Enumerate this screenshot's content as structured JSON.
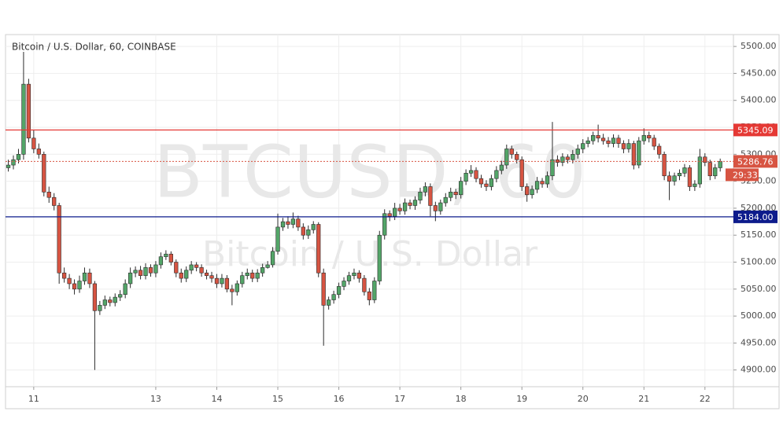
{
  "chart_data": {
    "type": "candlestick",
    "title": "Bitcoin / U.S. Dollar, 60, COINBASE",
    "watermark_symbol": "BTCUSD, 60",
    "watermark_name": "Bitcoin / U.S. Dollar",
    "up_color": "#53a568",
    "down_color": "#d75442",
    "wick_color": "#2b2b2b",
    "grid": true,
    "xlim": [
      -11.1,
      275.2
    ],
    "xticks": [
      {
        "value": 0,
        "label": "11"
      },
      {
        "value": 48,
        "label": "13"
      },
      {
        "value": 72,
        "label": "14"
      },
      {
        "value": 96,
        "label": "15"
      },
      {
        "value": 120,
        "label": "16"
      },
      {
        "value": 144,
        "label": "17"
      },
      {
        "value": 168,
        "label": "18"
      },
      {
        "value": 192,
        "label": "19"
      },
      {
        "value": 216,
        "label": "20"
      },
      {
        "value": 240,
        "label": "21"
      },
      {
        "value": 264,
        "label": "22"
      }
    ],
    "ylim": [
      4869,
      5522
    ],
    "yticks": [
      {
        "value": 4900,
        "label": "4900.00"
      },
      {
        "value": 4950,
        "label": "4950.00"
      },
      {
        "value": 5000,
        "label": "5000.00"
      },
      {
        "value": 5050,
        "label": "5050.00"
      },
      {
        "value": 5100,
        "label": "5100.00"
      },
      {
        "value": 5150,
        "label": "5150.00"
      },
      {
        "value": 5200,
        "label": "5200.00"
      },
      {
        "value": 5250,
        "label": "5250.00"
      },
      {
        "value": 5300,
        "label": "5300.00"
      },
      {
        "value": 5350,
        "label": "5350.00"
      },
      {
        "value": 5400,
        "label": "5400.00"
      },
      {
        "value": 5450,
        "label": "5450.00"
      },
      {
        "value": 5500,
        "label": "5500.00"
      }
    ],
    "levels": [
      {
        "value": 5345.09,
        "label": "5345.09",
        "color": "#e53935",
        "style": "solid"
      },
      {
        "value": 5286.76,
        "label": "5286.76",
        "color": "#d75442",
        "style": "dotted",
        "countdown": "29:33"
      },
      {
        "value": 5184,
        "label": "5184.00",
        "color": "#0d1b8c",
        "style": "solid"
      }
    ],
    "x": [
      -10,
      -8,
      -6,
      -4,
      -2,
      0,
      2,
      4,
      6,
      8,
      10,
      12,
      14,
      16,
      18,
      20,
      22,
      24,
      26,
      28,
      30,
      32,
      34,
      36,
      38,
      40,
      42,
      44,
      46,
      48,
      50,
      52,
      54,
      56,
      58,
      60,
      62,
      64,
      66,
      68,
      70,
      72,
      74,
      76,
      78,
      80,
      82,
      84,
      86,
      88,
      90,
      92,
      94,
      96,
      98,
      100,
      102,
      104,
      106,
      108,
      110,
      112,
      114,
      116,
      118,
      120,
      122,
      124,
      126,
      128,
      130,
      132,
      134,
      136,
      138,
      140,
      142,
      144,
      146,
      148,
      150,
      152,
      154,
      156,
      158,
      160,
      162,
      164,
      166,
      168,
      170,
      172,
      174,
      176,
      178,
      180,
      182,
      184,
      186,
      188,
      190,
      192,
      194,
      196,
      198,
      200,
      202,
      204,
      206,
      208,
      210,
      212,
      214,
      216,
      218,
      220,
      222,
      224,
      226,
      228,
      230,
      232,
      234,
      236,
      238,
      240,
      242,
      244,
      246,
      248,
      250,
      252,
      254,
      256,
      258,
      260,
      262,
      264,
      266,
      268,
      270
    ],
    "open": [
      5275,
      5280,
      5290,
      5300,
      5430,
      5330,
      5310,
      5300,
      5230,
      5220,
      5205,
      5080,
      5070,
      5060,
      5050,
      5065,
      5080,
      5060,
      5010,
      5020,
      5030,
      5025,
      5035,
      5040,
      5060,
      5080,
      5085,
      5075,
      5090,
      5080,
      5095,
      5110,
      5115,
      5100,
      5080,
      5070,
      5085,
      5095,
      5090,
      5080,
      5075,
      5070,
      5060,
      5070,
      5050,
      5045,
      5060,
      5075,
      5080,
      5070,
      5080,
      5090,
      5095,
      5120,
      5165,
      5175,
      5170,
      5180,
      5165,
      5150,
      5160,
      5170,
      5080,
      5020,
      5030,
      5040,
      5055,
      5065,
      5075,
      5080,
      5070,
      5045,
      5030,
      5065,
      5150,
      5190,
      5185,
      5200,
      5195,
      5210,
      5205,
      5215,
      5230,
      5240,
      5205,
      5195,
      5210,
      5220,
      5230,
      5225,
      5250,
      5265,
      5270,
      5255,
      5245,
      5240,
      5255,
      5270,
      5280,
      5310,
      5300,
      5290,
      5240,
      5225,
      5235,
      5250,
      5245,
      5260,
      5290,
      5285,
      5295,
      5290,
      5300,
      5310,
      5320,
      5325,
      5335,
      5330,
      5325,
      5320,
      5330,
      5320,
      5310,
      5320,
      5280,
      5325,
      5335,
      5330,
      5315,
      5300,
      5260,
      5250,
      5260,
      5265,
      5275,
      5240,
      5245,
      5295,
      5285,
      5260,
      5275
    ],
    "high": [
      5290,
      5298,
      5310,
      5490,
      5440,
      5345,
      5320,
      5305,
      5240,
      5228,
      5210,
      5090,
      5078,
      5068,
      5075,
      5090,
      5088,
      5065,
      5028,
      5038,
      5036,
      5042,
      5048,
      5068,
      5090,
      5092,
      5093,
      5098,
      5096,
      5102,
      5118,
      5122,
      5120,
      5105,
      5088,
      5092,
      5102,
      5100,
      5096,
      5086,
      5082,
      5078,
      5078,
      5076,
      5058,
      5066,
      5082,
      5088,
      5086,
      5087,
      5097,
      5102,
      5128,
      5190,
      5182,
      5185,
      5192,
      5186,
      5172,
      5168,
      5176,
      5174,
      5088,
      5036,
      5047,
      5062,
      5072,
      5082,
      5088,
      5085,
      5076,
      5052,
      5072,
      5158,
      5198,
      5196,
      5210,
      5208,
      5218,
      5216,
      5222,
      5238,
      5248,
      5246,
      5212,
      5216,
      5228,
      5238,
      5236,
      5258,
      5272,
      5280,
      5276,
      5262,
      5252,
      5262,
      5278,
      5288,
      5318,
      5316,
      5305,
      5296,
      5246,
      5242,
      5258,
      5256,
      5268,
      5360,
      5298,
      5302,
      5300,
      5308,
      5318,
      5328,
      5332,
      5342,
      5355,
      5338,
      5332,
      5337,
      5336,
      5326,
      5328,
      5325,
      5332,
      5348,
      5342,
      5336,
      5320,
      5305,
      5268,
      5266,
      5272,
      5282,
      5280,
      5252,
      5310,
      5302,
      5290,
      5282,
      5292
    ],
    "low": [
      5268,
      5272,
      5283,
      5290,
      5322,
      5302,
      5292,
      5222,
      5210,
      5196,
      5060,
      5062,
      5050,
      5040,
      5043,
      5058,
      5052,
      4900,
      5002,
      5013,
      5018,
      5018,
      5028,
      5033,
      5052,
      5072,
      5068,
      5068,
      5073,
      5072,
      5088,
      5104,
      5094,
      5072,
      5062,
      5063,
      5078,
      5083,
      5073,
      5068,
      5062,
      5052,
      5053,
      5044,
      5020,
      5038,
      5053,
      5068,
      5063,
      5063,
      5073,
      5088,
      5090,
      5114,
      5158,
      5162,
      5163,
      5158,
      5142,
      5143,
      5153,
      5072,
      4945,
      5012,
      5023,
      5033,
      5048,
      5058,
      5068,
      5062,
      5038,
      5020,
      5024,
      5058,
      5142,
      5176,
      5178,
      5188,
      5188,
      5198,
      5197,
      5208,
      5222,
      5185,
      5176,
      5188,
      5203,
      5213,
      5217,
      5218,
      5243,
      5258,
      5248,
      5238,
      5232,
      5233,
      5248,
      5263,
      5273,
      5292,
      5283,
      5232,
      5212,
      5218,
      5228,
      5238,
      5238,
      5252,
      5277,
      5278,
      5283,
      5283,
      5292,
      5302,
      5313,
      5318,
      5322,
      5318,
      5313,
      5313,
      5312,
      5302,
      5303,
      5272,
      5274,
      5318,
      5322,
      5308,
      5292,
      5252,
      5215,
      5242,
      5252,
      5258,
      5232,
      5232,
      5238,
      5278,
      5252,
      5254,
      5268
    ],
    "close": [
      5280,
      5290,
      5300,
      5430,
      5330,
      5310,
      5300,
      5230,
      5220,
      5205,
      5080,
      5070,
      5060,
      5050,
      5065,
      5080,
      5060,
      5010,
      5020,
      5030,
      5025,
      5035,
      5040,
      5060,
      5080,
      5085,
      5075,
      5090,
      5080,
      5095,
      5110,
      5115,
      5100,
      5080,
      5070,
      5085,
      5095,
      5090,
      5080,
      5075,
      5070,
      5060,
      5070,
      5050,
      5045,
      5060,
      5075,
      5080,
      5070,
      5080,
      5090,
      5095,
      5120,
      5165,
      5175,
      5170,
      5180,
      5165,
      5150,
      5160,
      5170,
      5080,
      5020,
      5030,
      5040,
      5055,
      5065,
      5075,
      5080,
      5070,
      5045,
      5030,
      5065,
      5150,
      5190,
      5185,
      5200,
      5195,
      5210,
      5205,
      5215,
      5230,
      5240,
      5205,
      5195,
      5210,
      5220,
      5230,
      5225,
      5250,
      5265,
      5270,
      5255,
      5245,
      5240,
      5255,
      5270,
      5280,
      5310,
      5300,
      5290,
      5240,
      5225,
      5235,
      5250,
      5245,
      5260,
      5290,
      5285,
      5295,
      5290,
      5300,
      5310,
      5320,
      5325,
      5335,
      5330,
      5325,
      5320,
      5330,
      5320,
      5310,
      5320,
      5280,
      5325,
      5335,
      5330,
      5315,
      5300,
      5260,
      5250,
      5260,
      5265,
      5275,
      5240,
      5245,
      5295,
      5285,
      5260,
      5275,
      5287
    ]
  }
}
